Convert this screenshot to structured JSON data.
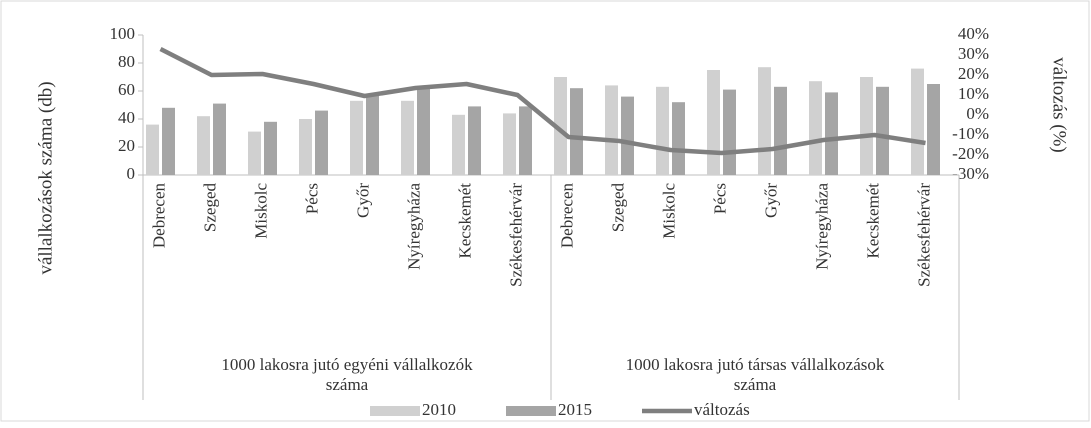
{
  "chart_data": {
    "type": "bar",
    "categories": [
      "Debrecen",
      "Szeged",
      "Miskolc",
      "Pécs",
      "Győr",
      "Nyíregyháza",
      "Kecskemét",
      "Székesfehérvár",
      "Debrecen",
      "Szeged",
      "Miskolc",
      "Pécs",
      "Győr",
      "Nyíregyháza",
      "Kecskemét",
      "Székesfehérvár"
    ],
    "category_groups": [
      "1000 lakosra jutó egyéni vállalkozók száma",
      "1000 lakosra jutó társas vállalkozások száma"
    ],
    "ylabel": "vállalkozások száma (db)",
    "y2label": "változás (%)",
    "series": [
      {
        "name": "2010",
        "type": "bar",
        "color": "#d0d0d0",
        "values": [
          36,
          42,
          31,
          40,
          53,
          53,
          43,
          44,
          70,
          64,
          63,
          75,
          77,
          67,
          70,
          76
        ]
      },
      {
        "name": "2015",
        "type": "bar",
        "color": "#a5a5a5",
        "values": [
          48,
          51,
          38,
          46,
          58,
          62,
          49,
          49,
          62,
          56,
          52,
          61,
          63,
          59,
          63,
          65
        ]
      },
      {
        "name": "változás",
        "type": "line",
        "axis": "y2",
        "color": "#7f7f7f",
        "values": [
          33,
          20,
          20.5,
          15.5,
          9.5,
          13.5,
          15.5,
          10,
          -11,
          -13,
          -17.5,
          -19,
          -17,
          -12.5,
          -10,
          -14
        ]
      }
    ],
    "ylim": [
      0,
      100
    ],
    "yticks": [
      0,
      20,
      40,
      60,
      80,
      100
    ],
    "y2lim": [
      -30,
      40
    ],
    "y2ticks": [
      {
        "value": -30,
        "label": "-30%"
      },
      {
        "value": -20,
        "label": "-20%"
      },
      {
        "value": -10,
        "label": "-10%"
      },
      {
        "value": 0,
        "label": "0%"
      },
      {
        "value": 10,
        "label": "10%"
      },
      {
        "value": 20,
        "label": "20%"
      },
      {
        "value": 30,
        "label": "30%"
      },
      {
        "value": 40,
        "label": "40%"
      }
    ],
    "legend": "bottom"
  }
}
